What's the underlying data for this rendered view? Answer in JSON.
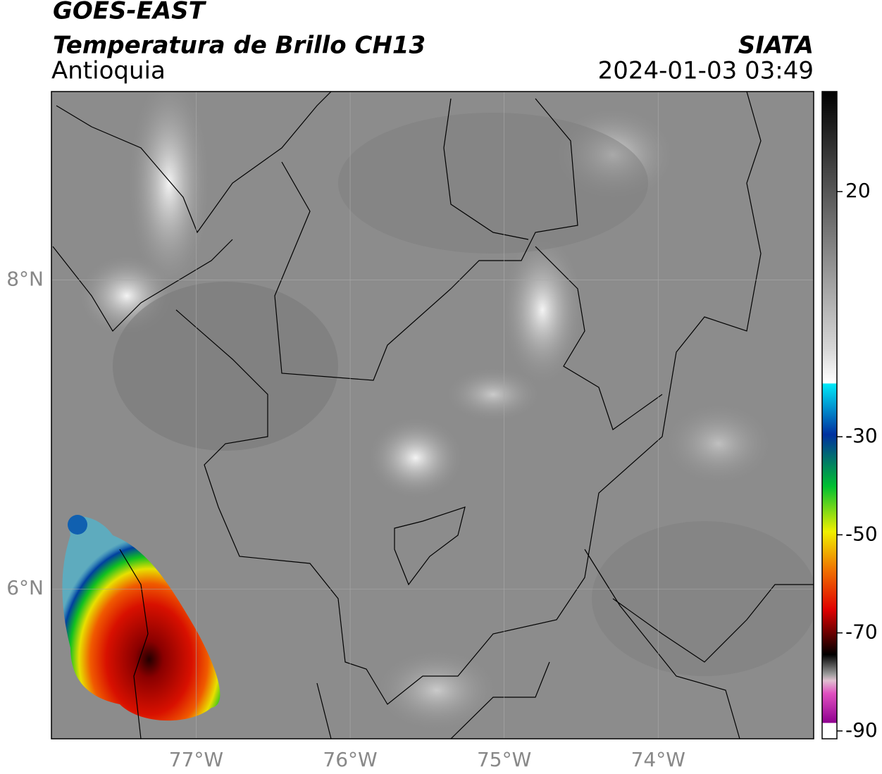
{
  "header": {
    "satellite": "GOES-EAST",
    "product": "Temperatura de Brillo CH13",
    "region": "Antioquia",
    "source": "SIATA",
    "datetime": "2024-01-03 03:49"
  },
  "map": {
    "xlim": [
      -77.94,
      -72.99
    ],
    "ylim": [
      5.03,
      9.22
    ],
    "xticks": [
      {
        "value": -77,
        "label": "77°W"
      },
      {
        "value": -76,
        "label": "76°W"
      },
      {
        "value": -75,
        "label": "75°W"
      },
      {
        "value": -74,
        "label": "74°W"
      }
    ],
    "yticks": [
      {
        "value": 6,
        "label": "6°N"
      },
      {
        "value": 8,
        "label": "8°N"
      }
    ],
    "grid": true
  },
  "colorbar": {
    "lim": [
      -91.6,
      40.4
    ],
    "ticks": [
      20,
      -30,
      -50,
      -70,
      -90
    ]
  }
}
